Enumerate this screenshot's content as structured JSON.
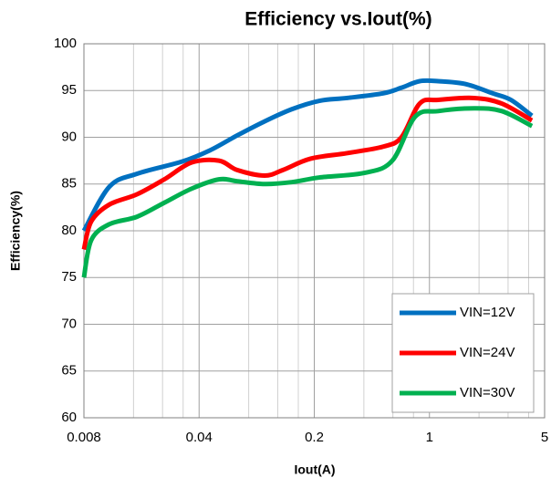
{
  "chart_data": {
    "type": "line",
    "title": "Efficiency vs.Iout(%)",
    "x_label": "Iout(A)",
    "y_label": "Efficiency(%)",
    "xlim": [
      0.008,
      5
    ],
    "xticks": [
      0.008,
      0.04,
      0.2,
      1,
      5
    ],
    "xscale": "log",
    "ylim": [
      60,
      100
    ],
    "yticks": [
      60,
      65,
      70,
      75,
      80,
      85,
      90,
      95,
      100
    ],
    "grid": true,
    "legend": "lower right",
    "series": [
      {
        "name": "VIN=12V",
        "color": "#0070c0",
        "x": [
          0.008,
          0.0114,
          0.0168,
          0.0315,
          0.0465,
          0.0681,
          0.0999,
          0.146,
          0.215,
          0.315,
          0.524,
          0.676,
          0.872,
          1.13,
          1.65,
          2.42,
          3.12,
          4.19
        ],
        "values": [
          80,
          84.7,
          86.1,
          87.4,
          88.6,
          90.2,
          91.7,
          93,
          93.9,
          94.2,
          94.7,
          95.3,
          96,
          96,
          95.7,
          94.7,
          94,
          92.3
        ]
      },
      {
        "name": "VIN=24V",
        "color": "#ff0000",
        "x": [
          0.008,
          0.00886,
          0.0114,
          0.0168,
          0.0246,
          0.036,
          0.0528,
          0.0681,
          0.0999,
          0.129,
          0.189,
          0.315,
          0.524,
          0.676,
          0.872,
          1.13,
          1.87,
          2.75,
          4.19
        ],
        "values": [
          78,
          81,
          82.8,
          83.9,
          85.5,
          87.3,
          87.5,
          86.5,
          85.9,
          86.5,
          87.7,
          88.3,
          89,
          90,
          93.6,
          94,
          94.2,
          93.6,
          91.8
        ]
      },
      {
        "name": "VIN=30V",
        "color": "#00b050",
        "x": [
          0.008,
          0.00886,
          0.0114,
          0.0168,
          0.0246,
          0.036,
          0.0528,
          0.0681,
          0.0999,
          0.146,
          0.215,
          0.406,
          0.595,
          0.819,
          1.13,
          1.87,
          2.75,
          4.19
        ],
        "values": [
          75,
          79,
          80.7,
          81.5,
          83,
          84.5,
          85.5,
          85.3,
          85,
          85.2,
          85.7,
          86.2,
          87.5,
          92.2,
          92.8,
          93.1,
          92.8,
          91.2
        ]
      }
    ]
  }
}
